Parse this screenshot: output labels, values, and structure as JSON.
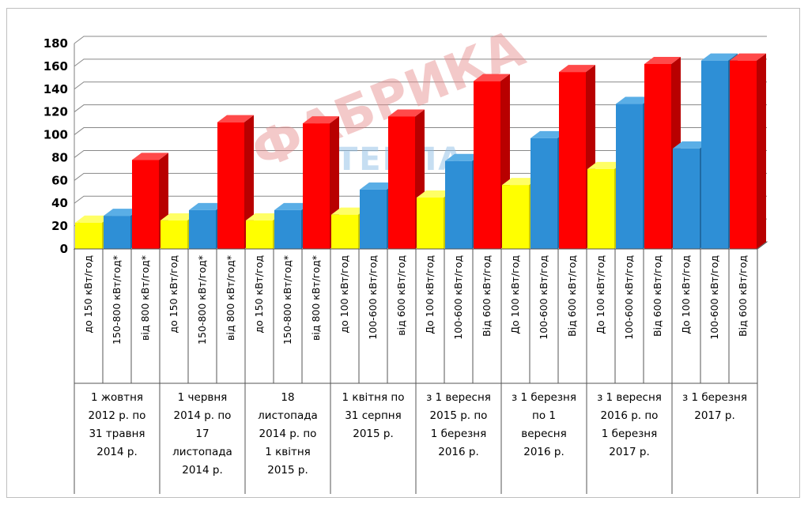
{
  "chart_data": {
    "type": "bar",
    "title": "",
    "xlabel": "",
    "ylabel": "",
    "ylim": [
      0,
      180
    ],
    "yticks": [
      0,
      20,
      40,
      60,
      80,
      100,
      120,
      140,
      160,
      180
    ],
    "grid": true,
    "categories": [
      "до 150 кВт/год",
      "150-800 кВт/год*",
      "від 800 кВт/год*",
      "до 150 кВт/год",
      "150-800 кВт/год*",
      "від 800 кВт/год*",
      "до 150 кВт/год",
      "150-800 кВт/год*",
      "від 800 кВт/год*",
      "до 100 кВт/год",
      "100-600 кВт/год",
      "від 600 кВт/год",
      "До 100 кВт/год",
      "100-600 кВт/год",
      "Від 600 кВт/год",
      "До 100 кВт/год",
      "100-600 кВт/год",
      "Від 600 кВт/год",
      "До 100 кВт/год",
      "100-600 кВт/год",
      "Від 600 кВт/год",
      "До 100 кВт/год",
      "100-600 кВт/год",
      "Від 600 кВт/год"
    ],
    "values": [
      23,
      29,
      78,
      25,
      34,
      111,
      25,
      34,
      110,
      30,
      52,
      116,
      45,
      77,
      147,
      56,
      97,
      155,
      70,
      127,
      162,
      88,
      165,
      165
    ],
    "bar_colors": [
      "yellow",
      "blue",
      "red",
      "yellow",
      "blue",
      "red",
      "yellow",
      "blue",
      "red",
      "yellow",
      "blue",
      "red",
      "yellow",
      "blue",
      "red",
      "yellow",
      "blue",
      "red",
      "yellow",
      "blue",
      "red",
      "blue",
      "blue",
      "red"
    ],
    "period_groups": [
      {
        "span": 3,
        "lines": [
          "1 жовтня",
          "2012 р. по",
          "31 травня",
          "2014 р."
        ]
      },
      {
        "span": 3,
        "lines": [
          "1 червня",
          "2014 р. по",
          "17",
          "листопада",
          "2014 р."
        ]
      },
      {
        "span": 3,
        "lines": [
          "18",
          "листопада",
          "2014 р. по",
          "1 квітня",
          "2015 р."
        ]
      },
      {
        "span": 3,
        "lines": [
          "1 квітня  по",
          "31 серпня",
          "2015 р."
        ]
      },
      {
        "span": 3,
        "lines": [
          "з 1 вересня",
          "2015 р. по",
          "1 березня",
          "2016 р."
        ]
      },
      {
        "span": 3,
        "lines": [
          "з 1 березня",
          "по 1",
          "вересня",
          "2016 р."
        ]
      },
      {
        "span": 3,
        "lines": [
          "з 1 вересня",
          "2016 р. по",
          "1 березня",
          "2017 р."
        ]
      },
      {
        "span": 3,
        "lines": [
          "з 1 березня",
          "2017 р."
        ]
      }
    ]
  },
  "colors": {
    "yellow": {
      "front": "#ffff00",
      "side": "#c8c800",
      "top": "#ffff66"
    },
    "blue": {
      "front": "#2e8fd6",
      "side": "#1f6aa3",
      "top": "#5aaee6"
    },
    "red": {
      "front": "#ff0000",
      "side": "#b80000",
      "top": "#ff4a4a"
    },
    "grid": "#888888",
    "wall": "#ffffff",
    "axis": "#7f7f7f"
  },
  "watermark": {
    "main": "ФАБРИКА",
    "sub": "ТЕПЛА"
  }
}
